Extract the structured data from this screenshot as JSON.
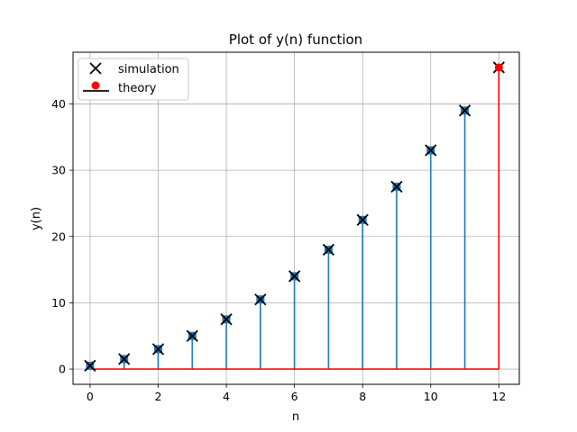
{
  "chart_data": {
    "type": "stem",
    "title": "Plot of y(n) function",
    "xlabel": "n",
    "ylabel": "y(n)",
    "xlim": [
      -0.5,
      12.6
    ],
    "ylim": [
      -2.3,
      47.8
    ],
    "xticks": [
      0,
      2,
      4,
      6,
      8,
      10,
      12
    ],
    "yticks": [
      0,
      10,
      20,
      30,
      40
    ],
    "grid": true,
    "legend_position": "upper-left",
    "series": [
      {
        "name": "simulation",
        "marker": "x",
        "color": "#000000",
        "x": [
          0,
          1,
          2,
          3,
          4,
          5,
          6,
          7,
          8,
          9,
          10,
          11,
          12
        ],
        "y": [
          0.5,
          1.5,
          3,
          5,
          7.5,
          10.5,
          14,
          18,
          22.5,
          27.5,
          33,
          39,
          45.5
        ]
      },
      {
        "name": "theory",
        "marker": "o",
        "color": "#ff0000",
        "x": [
          12
        ],
        "y": [
          45.5
        ]
      }
    ],
    "stem_data": {
      "x": [
        0,
        1,
        2,
        3,
        4,
        5,
        6,
        7,
        8,
        9,
        10,
        11,
        12
      ],
      "y": [
        0.5,
        1.5,
        3,
        5,
        7.5,
        10.5,
        14,
        18,
        22.5,
        27.5,
        33,
        39,
        45.5
      ],
      "stem_color": "#1f77b4",
      "marker_color": "#1f77b4"
    },
    "baseline_color": "#ff0000",
    "highlight_stem_color": "#ff0000"
  }
}
